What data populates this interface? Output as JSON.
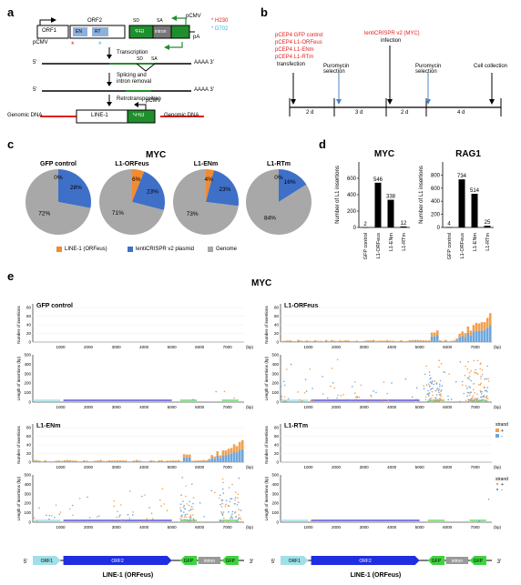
{
  "panels": {
    "a": "a",
    "b": "b",
    "c": "c",
    "d": "d",
    "e": "e"
  },
  "panel_a": {
    "orf1": "ORF1",
    "orf2": "ORF2",
    "en": "EN",
    "rt": "RT",
    "gfp_rev": "GFP",
    "intron": "intron",
    "sd": "SD",
    "sa": "SA",
    "pcmv": "pCMV",
    "pa": "pA",
    "h230": "H230",
    "d702": "D702",
    "transcription": "Transcription",
    "splicing": "Splicing and",
    "intron_removal": "intron removal",
    "retrotransposition": "Retrotransposition",
    "five": "5'",
    "three": "3'",
    "aaaa": "AAAA",
    "genomic_dna": "Genomic DNA",
    "line1": "LINE-1",
    "gfp_spliced": "GFP"
  },
  "panel_b": {
    "plasmids": [
      "pCEP4 GFP control",
      "pCEP4 L1-ORFeus",
      "pCEP4 L1-ENm",
      "pCEP4 L1-RTm"
    ],
    "transfection": "transfection",
    "puro1": "Puromycin selection",
    "lenti": "lentiCRISPR v2 (MYC)",
    "infection": "infection",
    "puro2": "Puromycin selection",
    "collection": "Cell collection",
    "intervals": [
      "2 d",
      "3 d",
      "2 d",
      "4 d"
    ]
  },
  "panel_c": {
    "title": "MYC",
    "legend": [
      "LINE-1 (ORFeus)",
      "lentiCRISPR v2 plasmid",
      "Genome"
    ],
    "colors": {
      "line1": "#f28a30",
      "lenti": "#3f70c8",
      "genome": "#a8a8a8"
    }
  },
  "panel_d": {
    "ylabel": "Number of L1 insertions"
  },
  "panel_e": {
    "title": "MYC",
    "subpanels": [
      "GFP control",
      "L1-ORFeus",
      "L1-ENm",
      "L1-RTm"
    ],
    "y_top": "Number of insertions",
    "y_bottom": "Length of insertions (bp)",
    "x_unit": "(bp)",
    "legend_title": "strand",
    "legend_plus": "+",
    "legend_minus": "-",
    "map_labels": [
      "ORF1",
      "ORF2",
      "GFP",
      "intron",
      "GFP"
    ],
    "five": "5'",
    "three": "3'",
    "map_title": "LINE-1 (ORFeus)"
  },
  "chart_data": [
    {
      "type": "pie",
      "title": "MYC",
      "charts": [
        {
          "name": "GFP control",
          "slices": [
            {
              "label": "LINE-1 (ORFeus)",
              "value": 0
            },
            {
              "label": "lentiCRISPR v2 plasmid",
              "value": 28
            },
            {
              "label": "Genome",
              "value": 72
            }
          ],
          "labels": [
            "0%",
            "28%",
            "72%"
          ]
        },
        {
          "name": "L1-ORFeus",
          "slices": [
            {
              "label": "LINE-1 (ORFeus)",
              "value": 6
            },
            {
              "label": "lentiCRISPR v2 plasmid",
              "value": 23
            },
            {
              "label": "Genome",
              "value": 71
            }
          ],
          "labels": [
            "6%",
            "23%",
            "71%"
          ]
        },
        {
          "name": "L1-ENm",
          "slices": [
            {
              "label": "LINE-1 (ORFeus)",
              "value": 4
            },
            {
              "label": "lentiCRISPR v2 plasmid",
              "value": 23
            },
            {
              "label": "Genome",
              "value": 73
            }
          ],
          "labels": [
            "4%",
            "23%",
            "73%"
          ]
        },
        {
          "name": "L1-RTm",
          "slices": [
            {
              "label": "LINE-1 (ORFeus)",
              "value": 0
            },
            {
              "label": "lentiCRISPR v2 plasmid",
              "value": 16
            },
            {
              "label": "Genome",
              "value": 84
            }
          ],
          "labels": [
            "0%",
            "16%",
            "84%"
          ]
        }
      ],
      "legend": [
        "LINE-1 (ORFeus)",
        "lentiCRISPR v2 plasmid",
        "Genome"
      ]
    },
    {
      "type": "bar",
      "title": "MYC",
      "categories": [
        "GFP control",
        "L1-ORFeus",
        "L1-ENm",
        "L1-RTm"
      ],
      "values": [
        2,
        546,
        338,
        12
      ],
      "ylabel": "Number of L1 insertions",
      "ylim": [
        0,
        800
      ],
      "yticks": [
        "0",
        "200",
        "400",
        "600"
      ]
    },
    {
      "type": "bar",
      "title": "RAG1",
      "categories": [
        "GFP control",
        "L1-ORFeus",
        "L1-ENm",
        "L1-RTm"
      ],
      "values": [
        4,
        734,
        514,
        25
      ],
      "ylabel": "Number of L1 insertions",
      "ylim": [
        0,
        1000
      ],
      "yticks": [
        "0",
        "200",
        "400",
        "600",
        "800"
      ]
    },
    {
      "type": "bar",
      "title": "MYC",
      "subplots": [
        "GFP control",
        "L1-ORFeus",
        "L1-ENm",
        "L1-RTm"
      ],
      "x_ticks": [
        "1000",
        "2000",
        "3000",
        "4000",
        "5000",
        "6000",
        "7000"
      ],
      "count_yticks": [
        "0",
        "20",
        "40",
        "60",
        "80"
      ],
      "length_yticks": [
        "0",
        "100",
        "200",
        "300",
        "400",
        "500"
      ],
      "legend": [
        "+",
        "-"
      ]
    }
  ]
}
